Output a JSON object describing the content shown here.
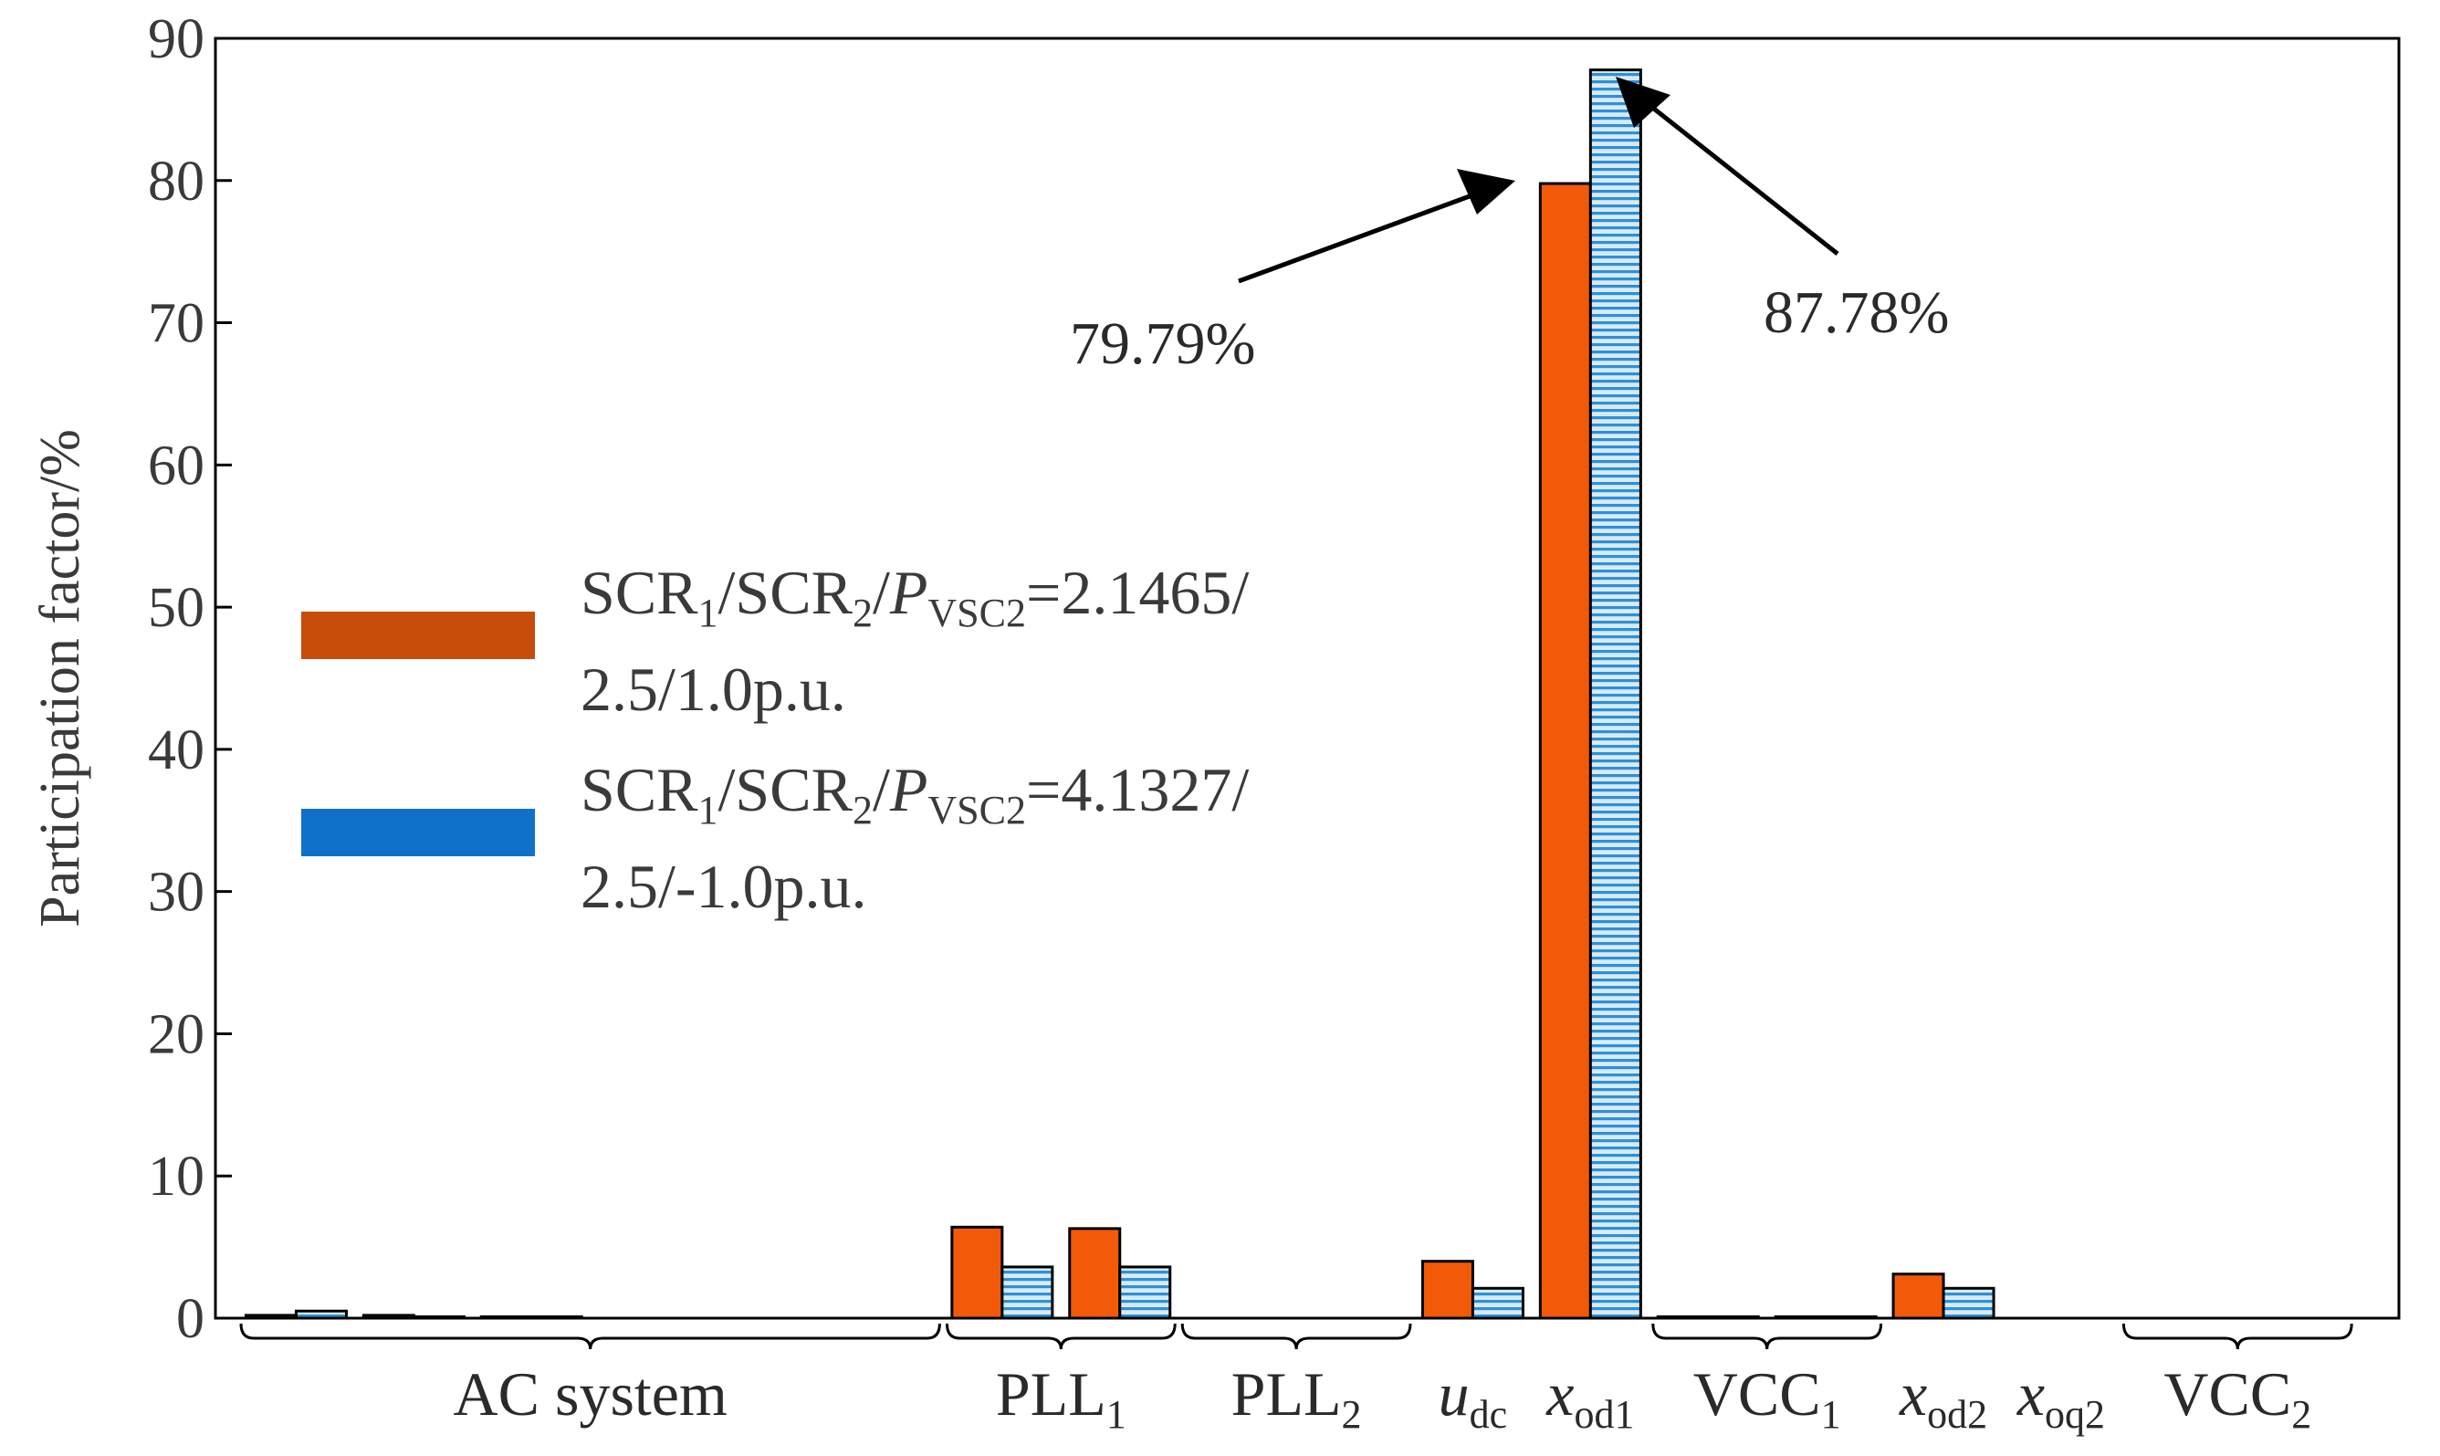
{
  "chart_data": {
    "type": "bar",
    "title": "",
    "xlabel": "",
    "ylabel": "Participation factor/%",
    "ylim": [
      0,
      90
    ],
    "yticks": [
      "0",
      "10",
      "20",
      "30",
      "40",
      "50",
      "60",
      "70",
      "80",
      "90"
    ],
    "grid": false,
    "legend_position": "middle-left",
    "colors": {
      "series1": "#f25a0a",
      "series1_legend": "#c84d0c",
      "series2_fill": "#d6ebf7",
      "series2_stripe": "#2f8fd6",
      "series2_legend": "#0f72c8",
      "axis": "#000000"
    },
    "series": [
      {
        "name": "SCR1/SCR2/PVSC2=2.1465/2.5/1.0p.u.",
        "legend": {
          "main1": "SCR",
          "sub1": "1",
          "main2": "/SCR",
          "sub2": "2",
          "main3": "/",
          "italic": "P",
          "sub3": "VSC2",
          "main4": "=2.1465/",
          "line2": "2.5/1.0p.u."
        },
        "values": [
          0.2,
          0.2,
          0.1,
          0,
          0,
          0,
          6.4,
          6.3,
          0,
          0,
          4.0,
          79.79,
          0.1,
          0.1,
          3.1,
          0,
          0,
          0
        ]
      },
      {
        "name": "SCR1/SCR2/PVSC2=4.1327/2.5/-1.0p.u.",
        "legend": {
          "main1": "SCR",
          "sub1": "1",
          "main2": "/SCR",
          "sub2": "2",
          "main3": "/",
          "italic": "P",
          "sub3": "VSC2",
          "main4": "=4.1327/",
          "line2": "2.5/-1.0p.u."
        },
        "values": [
          0.5,
          0.1,
          0.1,
          0,
          0,
          0,
          3.6,
          3.6,
          0,
          0,
          2.1,
          87.78,
          0.1,
          0.1,
          2.1,
          0,
          0,
          0
        ]
      }
    ],
    "groups": [
      {
        "label": "AC system",
        "start": 0,
        "end": 5
      },
      {
        "label": "PLL",
        "sub": "1",
        "start": 6,
        "end": 7
      },
      {
        "label": "PLL",
        "sub": "2",
        "start": 8,
        "end": 9
      },
      {
        "label": "u",
        "sub": "dc",
        "italic": true,
        "start": 10,
        "end": 10
      },
      {
        "label": "x",
        "sub": "od1",
        "italic": true,
        "start": 11,
        "end": 11
      },
      {
        "label": "VCC",
        "sub": "1",
        "start": 12,
        "end": 13
      },
      {
        "label": "x",
        "sub": "od2",
        "italic": true,
        "start": 14,
        "end": 14
      },
      {
        "label": "x",
        "sub": "oq2",
        "italic": true,
        "start": 15,
        "end": 15
      },
      {
        "label": "VCC",
        "sub": "2",
        "start": 16,
        "end": 17
      }
    ],
    "annotations": [
      {
        "text": "79.79%",
        "target_index": 11,
        "series": 0,
        "value": 79.79
      },
      {
        "text": "87.78%",
        "target_index": 11,
        "series": 1,
        "value": 87.78
      }
    ]
  }
}
